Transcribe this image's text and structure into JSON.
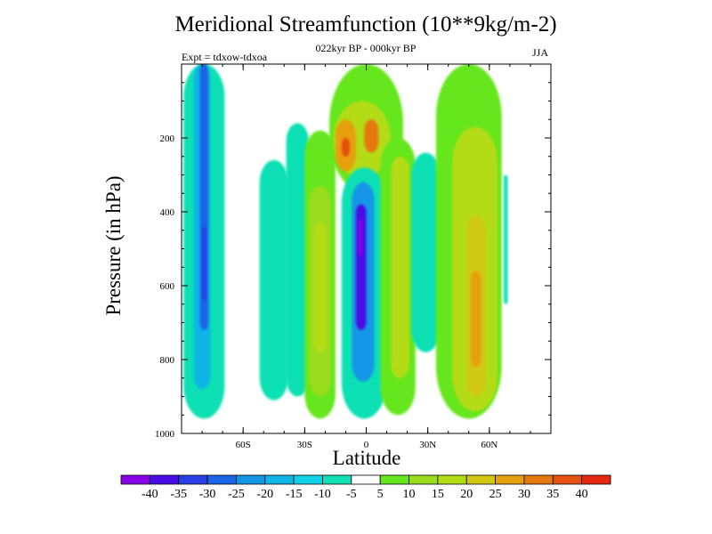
{
  "chart_data": {
    "type": "contour",
    "title": "Meridional Streamfunction (10**9kg/m-2)",
    "subtitle": "022kyr BP - 000kyr BP",
    "left_label": "Expt = tdxow-tdxoa",
    "right_label": "JJA",
    "xlabel": "Latitude",
    "ylabel": "Pressure (in hPa)",
    "x_ticks": [
      {
        "value": -60,
        "label": "60S"
      },
      {
        "value": -30,
        "label": "30S"
      },
      {
        "value": 0,
        "label": "0"
      },
      {
        "value": 30,
        "label": "30N"
      },
      {
        "value": 60,
        "label": "60N"
      }
    ],
    "y_ticks": [
      {
        "value": 200,
        "label": "200"
      },
      {
        "value": 400,
        "label": "400"
      },
      {
        "value": 600,
        "label": "600"
      },
      {
        "value": 800,
        "label": "800"
      },
      {
        "value": 1000,
        "label": "1000"
      }
    ],
    "xlim": [
      -90,
      90
    ],
    "ylim": [
      1000,
      0
    ],
    "missing_color": "#e8e8e8",
    "colorbar": {
      "labels": [
        "-40",
        "-35",
        "-30",
        "-25",
        "-20",
        "-15",
        "-10",
        "-5",
        "5",
        "10",
        "15",
        "20",
        "25",
        "30",
        "35",
        "40"
      ],
      "colors": [
        "#8a00e6",
        "#4a0ce6",
        "#2a3ee6",
        "#1a64e6",
        "#1496e6",
        "#10b4e6",
        "#10d2e6",
        "#10e0b4",
        "#ffffff",
        "#66e61e",
        "#98dc1e",
        "#b4dc14",
        "#d2c814",
        "#e6a010",
        "#e67810",
        "#e65010",
        "#e62810"
      ]
    },
    "regions": [
      {
        "level": 8,
        "x_range": [
          -90,
          90
        ],
        "p_range": [
          0,
          1000
        ]
      },
      {
        "level": 7,
        "x_range": [
          -89,
          -69
        ],
        "p_range": [
          0,
          960
        ],
        "note": "negative cell, southern high latitudes"
      },
      {
        "level": 5,
        "x_range": [
          -84,
          -76
        ],
        "p_range": [
          0,
          880
        ]
      },
      {
        "level": 3,
        "x_range": [
          -81,
          -77
        ],
        "p_range": [
          0,
          720
        ]
      },
      {
        "level": 2,
        "x_range": [
          -80,
          -78
        ],
        "p_range": [
          440,
          640
        ]
      },
      {
        "level": 7,
        "x_range": [
          -52,
          -38
        ],
        "p_range": [
          260,
          910
        ]
      },
      {
        "level": 7,
        "x_range": [
          -39,
          -28
        ],
        "p_range": [
          160,
          900
        ]
      },
      {
        "level": 9,
        "x_range": [
          -30,
          -15
        ],
        "p_range": [
          180,
          960
        ]
      },
      {
        "level": 10,
        "x_range": [
          -28,
          -17
        ],
        "p_range": [
          330,
          900
        ]
      },
      {
        "level": 11,
        "x_range": [
          -26,
          -19
        ],
        "p_range": [
          430,
          780
        ]
      },
      {
        "level": 9,
        "x_range": [
          -18,
          18
        ],
        "p_range": [
          0,
          350
        ]
      },
      {
        "level": 11,
        "x_range": [
          -16,
          12
        ],
        "p_range": [
          100,
          310
        ]
      },
      {
        "level": 13,
        "x_range": [
          -15,
          -5
        ],
        "p_range": [
          150,
          290
        ]
      },
      {
        "level": 14,
        "x_range": [
          -1,
          6
        ],
        "p_range": [
          150,
          240
        ]
      },
      {
        "level": 15,
        "x_range": [
          -12,
          -8
        ],
        "p_range": [
          200,
          250
        ]
      },
      {
        "level": 7,
        "x_range": [
          -12,
          10
        ],
        "p_range": [
          280,
          960
        ]
      },
      {
        "level": 4,
        "x_range": [
          -7,
          4
        ],
        "p_range": [
          320,
          860
        ]
      },
      {
        "level": 1,
        "x_range": [
          -5,
          0
        ],
        "p_range": [
          380,
          720
        ]
      },
      {
        "level": 0,
        "x_range": [
          -4,
          -2
        ],
        "p_range": [
          420,
          520
        ]
      },
      {
        "level": 9,
        "x_range": [
          7,
          24
        ],
        "p_range": [
          200,
          950
        ]
      },
      {
        "level": 11,
        "x_range": [
          12,
          21
        ],
        "p_range": [
          250,
          850
        ]
      },
      {
        "level": 7,
        "x_range": [
          22,
          36
        ],
        "p_range": [
          240,
          780
        ]
      },
      {
        "level": 9,
        "x_range": [
          34,
          66
        ],
        "p_range": [
          0,
          960
        ]
      },
      {
        "level": 11,
        "x_range": [
          42,
          64
        ],
        "p_range": [
          170,
          940
        ]
      },
      {
        "level": 12,
        "x_range": [
          49,
          58
        ],
        "p_range": [
          410,
          900
        ]
      },
      {
        "level": 13,
        "x_range": [
          51,
          56
        ],
        "p_range": [
          560,
          820
        ]
      },
      {
        "level": 7,
        "x_range": [
          67,
          69
        ],
        "p_range": [
          300,
          650
        ]
      }
    ]
  }
}
